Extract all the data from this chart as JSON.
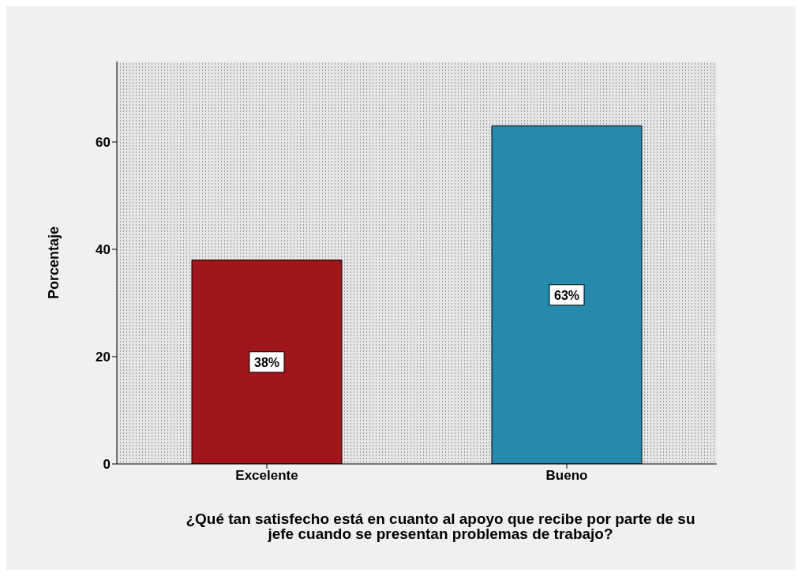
{
  "chart_data": {
    "type": "bar",
    "categories": [
      "Excelente",
      "Bueno"
    ],
    "values": [
      38,
      63
    ],
    "colors": [
      "#a0161a",
      "#258aab"
    ],
    "value_labels": [
      "38%",
      "63%"
    ],
    "ylabel": "Porcentaje",
    "xlabel": "¿Qué tan satisfecho está en cuanto al apoyo que recibe por parte de su jefe cuando se presentan problemas de trabajo?",
    "ylim": [
      0,
      75
    ],
    "yticks": [
      0,
      20,
      40,
      60
    ],
    "grid": false
  }
}
